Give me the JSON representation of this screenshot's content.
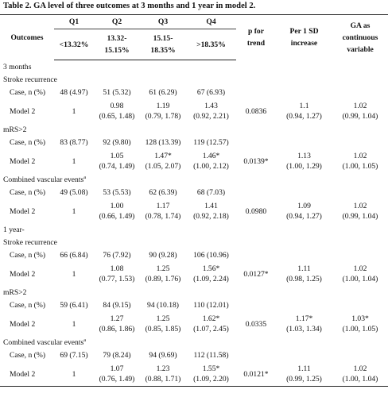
{
  "caption": "Table 2. GA level of three outcomes at 3 months and 1 year in model 2.",
  "header": {
    "outcomes": "Outcomes",
    "q_labels": [
      "Q1",
      "Q2",
      "Q3",
      "Q4"
    ],
    "q_ranges": [
      "<13.32%",
      "13.32-15.15%",
      "15.15-18.35%",
      ">18.35%"
    ],
    "p_trend": "p for trend",
    "per_sd": "Per 1 SD increase",
    "ga_cont": "GA as continuous variable"
  },
  "rows": [
    {
      "kind": "sec",
      "label": "3 months"
    },
    {
      "kind": "sub",
      "label": "Stroke recurrence"
    },
    {
      "kind": "case",
      "label": "Case, n (%)",
      "q1": "48 (4.97)",
      "q2": "51 (5.32)",
      "q3": "61 (6.29)",
      "q4": "67 (6.93)"
    },
    {
      "kind": "mod",
      "label": "Model 2",
      "q1": "1",
      "q2a": "0.98",
      "q2b": "(0.65, 1.48)",
      "q3a": "1.19",
      "q3b": "(0.79, 1.78)",
      "q4a": "1.43",
      "q4b": "(0.92, 2.21)",
      "p": "0.0836",
      "sda": "1.1",
      "sdb": "(0.94, 1.27)",
      "gaa": "1.02",
      "gab": "(0.99, 1.04)"
    },
    {
      "kind": "sub",
      "label": "mRS>2"
    },
    {
      "kind": "case",
      "label": "Case, n (%)",
      "q1": "83 (8.77)",
      "q2": "92 (9.80)",
      "q3": "128 (13.39)",
      "q4": "119 (12.57)"
    },
    {
      "kind": "mod",
      "label": "Model 2",
      "q1": "1",
      "q2a": "1.05",
      "q2b": "(0.74, 1.49)",
      "q3a": "1.47*",
      "q3b": "(1.05, 2.07)",
      "q4a": "1.46*",
      "q4b": "(1.00, 2.12)",
      "p": "0.0139*",
      "sda": "1.13",
      "sdb": "(1.00, 1.29)",
      "gaa": "1.02",
      "gab": "(1.00, 1.05)"
    },
    {
      "kind": "sub",
      "label": "Combined vascular events",
      "sup": "a"
    },
    {
      "kind": "case",
      "label": "Case, n (%)",
      "q1": "49 (5.08)",
      "q2": "53 (5.53)",
      "q3": "62 (6.39)",
      "q4": "68 (7.03)",
      "merge_label": true
    },
    {
      "kind": "mod",
      "label": "Model 2",
      "q1": "1",
      "q2a": "1.00",
      "q2b": "(0.66, 1.49)",
      "q3a": "1.17",
      "q3b": "(0.78, 1.74)",
      "q4a": "1.41",
      "q4b": "(0.92, 2.18)",
      "p": "0.0980",
      "sda": "1.09",
      "sdb": "(0.94, 1.27)",
      "gaa": "1.02",
      "gab": "(0.99, 1.04)"
    },
    {
      "kind": "sec",
      "label": "1 year-"
    },
    {
      "kind": "sub",
      "label": "Stroke recurrence"
    },
    {
      "kind": "case",
      "label": "Case, n (%)",
      "q1": "66 (6.84)",
      "q2": "76 (7.92)",
      "q3": "90 (9.28)",
      "q4": "106 (10.96)"
    },
    {
      "kind": "mod",
      "label": "Model 2",
      "q1": "1",
      "q2a": "1.08",
      "q2b": "(0.77, 1.53)",
      "q3a": "1.25",
      "q3b": "(0.89, 1.76)",
      "q4a": "1.56*",
      "q4b": "(1.09, 2.24)",
      "p": "0.0127*",
      "sda": "1.11",
      "sdb": "(0.98, 1.25)",
      "gaa": "1.02",
      "gab": "(1.00, 1.04)"
    },
    {
      "kind": "sub",
      "label": "mRS>2"
    },
    {
      "kind": "case",
      "label": "Case, n (%)",
      "q1": "59 (6.41)",
      "q2": "84 (9.15)",
      "q3": "94 (10.18)",
      "q4": "110 (12.01)"
    },
    {
      "kind": "mod",
      "label": "Model 2",
      "q1": "1",
      "q2a": "1.27",
      "q2b": "(0.86, 1.86)",
      "q3a": "1.25",
      "q3b": "(0.85, 1.85)",
      "q4a": "1.62*",
      "q4b": "(1.07, 2.45)",
      "p": "0.0335",
      "sda": "1.17*",
      "sdb": "(1.03, 1.34)",
      "gaa": "1.03*",
      "gab": "(1.00, 1.05)"
    },
    {
      "kind": "sub",
      "label": "Combined vascular events",
      "sup": "a"
    },
    {
      "kind": "case",
      "label": "Case, n (%)",
      "q1": "69 (7.15)",
      "q2": "79 (8.24)",
      "q3": "94 (9.69)",
      "q4": "112 (11.58)"
    },
    {
      "kind": "mod",
      "label": "Model 2",
      "q1": "1",
      "q2a": "1.07",
      "q2b": "(0.76, 1.49)",
      "q3a": "1.23",
      "q3b": "(0.88, 1.71)",
      "q4a": "1.55*",
      "q4b": "(1.09, 2.20)",
      "p": "0.0121*",
      "sda": "1.11",
      "sdb": "(0.99, 1.25)",
      "gaa": "1.02",
      "gab": "(1.00, 1.04)"
    }
  ]
}
